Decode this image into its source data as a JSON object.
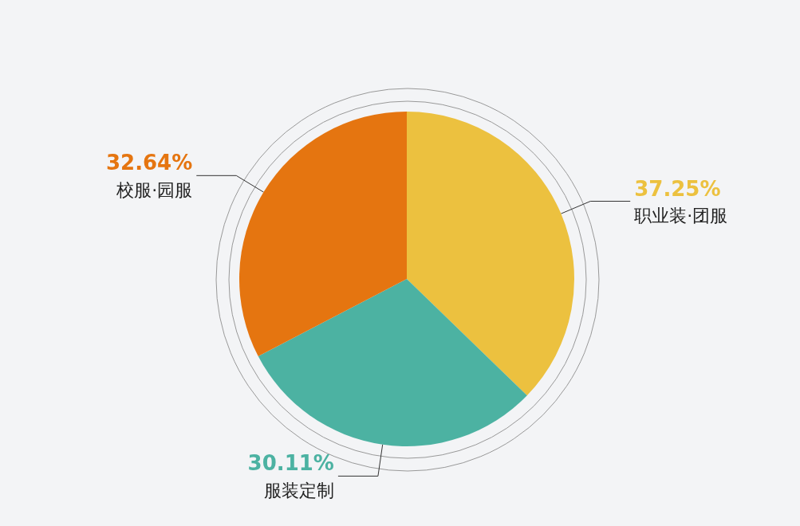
{
  "chart_data": {
    "type": "pie",
    "categories": [
      "职业装·团服",
      "服装定制",
      "校服·园服"
    ],
    "values": [
      37.25,
      30.11,
      32.64
    ],
    "value_labels": [
      "37.25%",
      "30.11%",
      "32.64%"
    ],
    "colors": [
      "#ecc13f",
      "#4cb2a2",
      "#e57510"
    ],
    "legend": false
  }
}
